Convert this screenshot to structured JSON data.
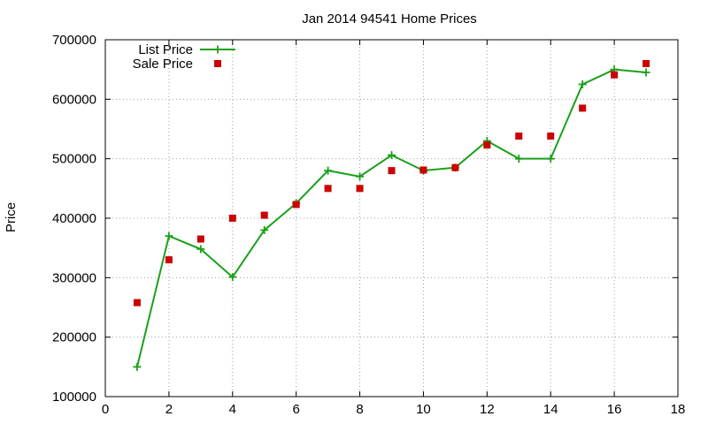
{
  "chart_data": {
    "type": "line",
    "title": "Jan 2014 94541 Home Prices",
    "xlabel": "",
    "ylabel": "Price",
    "xlim": [
      0,
      18
    ],
    "ylim": [
      100000,
      700000
    ],
    "x_ticks": [
      0,
      2,
      4,
      6,
      8,
      10,
      12,
      14,
      16,
      18
    ],
    "y_ticks": [
      100000,
      200000,
      300000,
      400000,
      500000,
      600000,
      700000
    ],
    "grid": true,
    "legend_position": "top-left",
    "series": [
      {
        "name": "List Price",
        "style": "line+markers",
        "marker": "plus",
        "color": "#1aa01a",
        "x": [
          1,
          2,
          3,
          4,
          5,
          6,
          7,
          8,
          9,
          10,
          11,
          12,
          13,
          14,
          15,
          16,
          17
        ],
        "values": [
          150000,
          370000,
          348000,
          301000,
          380000,
          425000,
          480000,
          470000,
          506000,
          480000,
          485000,
          530000,
          500000,
          500000,
          625000,
          650000,
          645000
        ]
      },
      {
        "name": "Sale Price",
        "style": "points",
        "marker": "square",
        "color": "#cc0000",
        "x": [
          1,
          2,
          3,
          4,
          5,
          6,
          7,
          8,
          9,
          10,
          11,
          12,
          13,
          14,
          15,
          16,
          17
        ],
        "values": [
          258000,
          330000,
          365000,
          400000,
          405000,
          423000,
          450000,
          450000,
          480000,
          481000,
          485000,
          523000,
          538000,
          538000,
          585000,
          641000,
          660000
        ]
      }
    ]
  }
}
